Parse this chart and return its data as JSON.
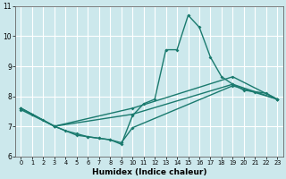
{
  "xlabel": "Humidex (Indice chaleur)",
  "xlim": [
    -0.5,
    23.5
  ],
  "ylim": [
    6,
    11
  ],
  "yticks": [
    6,
    7,
    8,
    9,
    10,
    11
  ],
  "xticks": [
    0,
    1,
    2,
    3,
    4,
    5,
    6,
    7,
    8,
    9,
    10,
    11,
    12,
    13,
    14,
    15,
    16,
    17,
    18,
    19,
    20,
    21,
    22,
    23
  ],
  "bg_color": "#cce8ec",
  "grid_color": "#ffffff",
  "line_color": "#1a7a6e",
  "line1_x": [
    0,
    1,
    2,
    3,
    4,
    5,
    6,
    7,
    8,
    9,
    10,
    11,
    12,
    13,
    14,
    15,
    16,
    17,
    18,
    19,
    20,
    21,
    22,
    23
  ],
  "line1_y": [
    7.6,
    7.4,
    7.2,
    7.0,
    6.85,
    6.75,
    6.65,
    6.6,
    6.55,
    6.4,
    7.35,
    7.75,
    7.9,
    9.55,
    9.55,
    10.7,
    10.3,
    9.3,
    8.65,
    8.4,
    8.2,
    8.15,
    8.1,
    7.9
  ],
  "line2_x": [
    0,
    3,
    10,
    19,
    23
  ],
  "line2_y": [
    7.6,
    7.0,
    7.6,
    8.65,
    7.9
  ],
  "line3_x": [
    0,
    3,
    10,
    19,
    23
  ],
  "line3_y": [
    7.55,
    7.0,
    7.4,
    8.4,
    7.9
  ],
  "line4_x": [
    0,
    3,
    5,
    6,
    7,
    8,
    9,
    10,
    19,
    23
  ],
  "line4_y": [
    7.6,
    7.0,
    6.7,
    6.65,
    6.6,
    6.55,
    6.45,
    6.95,
    8.35,
    7.9
  ]
}
